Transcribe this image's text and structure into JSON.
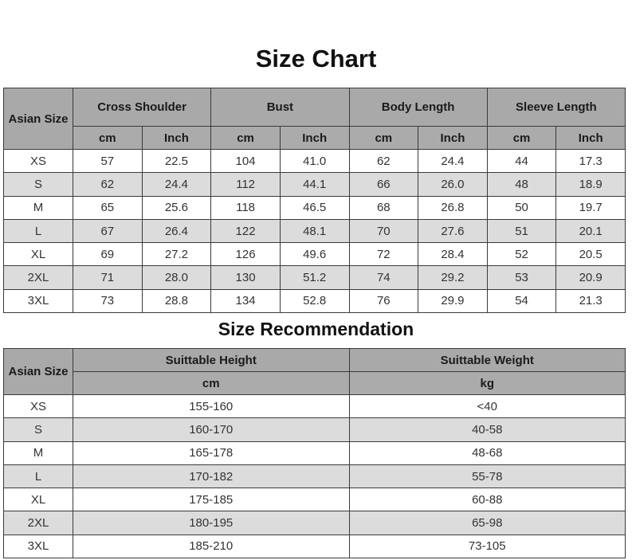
{
  "size_chart": {
    "title": "Size Chart",
    "size_header": "Asian Size",
    "groups": [
      "Cross Shoulder",
      "Bust",
      "Body Length",
      "Sleeve Length"
    ],
    "units": [
      "cm",
      "Inch",
      "cm",
      "Inch",
      "cm",
      "Inch",
      "cm",
      "Inch"
    ],
    "rows": [
      [
        "XS",
        "57",
        "22.5",
        "104",
        "41.0",
        "62",
        "24.4",
        "44",
        "17.3"
      ],
      [
        "S",
        "62",
        "24.4",
        "112",
        "44.1",
        "66",
        "26.0",
        "48",
        "18.9"
      ],
      [
        "M",
        "65",
        "25.6",
        "118",
        "46.5",
        "68",
        "26.8",
        "50",
        "19.7"
      ],
      [
        "L",
        "67",
        "26.4",
        "122",
        "48.1",
        "70",
        "27.6",
        "51",
        "20.1"
      ],
      [
        "XL",
        "69",
        "27.2",
        "126",
        "49.6",
        "72",
        "28.4",
        "52",
        "20.5"
      ],
      [
        "2XL",
        "71",
        "28.0",
        "130",
        "51.2",
        "74",
        "29.2",
        "53",
        "20.9"
      ],
      [
        "3XL",
        "73",
        "28.8",
        "134",
        "52.8",
        "76",
        "29.9",
        "54",
        "21.3"
      ]
    ]
  },
  "size_recommendation": {
    "title": "Size Recommendation",
    "size_header": "Asian Size",
    "groups": [
      "Suittable Height",
      "Suittable Weight"
    ],
    "units": [
      "cm",
      "kg"
    ],
    "rows": [
      [
        "XS",
        "155-160",
        "<40"
      ],
      [
        "S",
        "160-170",
        "40-58"
      ],
      [
        "M",
        "165-178",
        "48-68"
      ],
      [
        "L",
        "170-182",
        "55-78"
      ],
      [
        "XL",
        "175-185",
        "60-88"
      ],
      [
        "2XL",
        "180-195",
        "65-98"
      ],
      [
        "3XL",
        "185-210",
        "73-105"
      ]
    ]
  },
  "colors": {
    "header": "#a9a9a9",
    "alt_row": "#dcdcdc",
    "border": "#3a3a3a"
  }
}
